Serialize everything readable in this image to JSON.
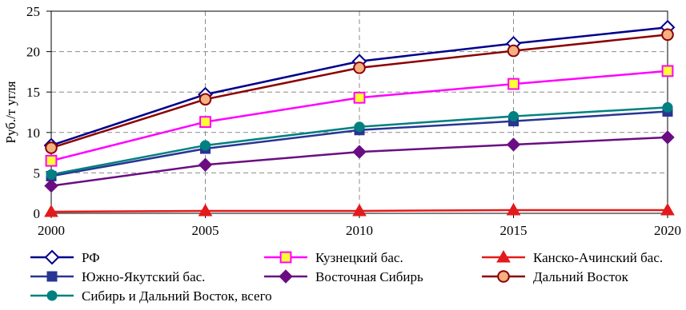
{
  "chart_data": {
    "type": "line",
    "x": [
      2000,
      2005,
      2010,
      2015,
      2020
    ],
    "xlim": [
      2000,
      2020
    ],
    "ylim": [
      0,
      25
    ],
    "x_ticks": [
      "2000",
      "2005",
      "2010",
      "2015",
      "2020"
    ],
    "y_ticks": [
      "0",
      "5",
      "10",
      "15",
      "20",
      "25"
    ],
    "xlabel": "",
    "ylabel": "Руб./т угля",
    "grid": true,
    "legend_position": "bottom",
    "series": [
      {
        "name": "РФ",
        "values": [
          8.4,
          14.7,
          18.8,
          21.0,
          23.0
        ],
        "color": "#00008b",
        "marker": "diamond-open"
      },
      {
        "name": "Кузнецкий бас.",
        "values": [
          6.5,
          11.3,
          14.3,
          16.0,
          17.6
        ],
        "color": "#ff00ff",
        "marker": "square-yellow"
      },
      {
        "name": "Канско-Ачинский бас.",
        "values": [
          0.2,
          0.3,
          0.3,
          0.4,
          0.4
        ],
        "color": "#e31a1c",
        "marker": "triangle"
      },
      {
        "name": "Южно-Якутский бас.",
        "values": [
          4.6,
          8.0,
          10.3,
          11.4,
          12.6
        ],
        "color": "#283593",
        "marker": "square"
      },
      {
        "name": "Восточная Сибирь",
        "values": [
          3.4,
          6.0,
          7.6,
          8.5,
          9.4
        ],
        "color": "#6a0d83",
        "marker": "diamond"
      },
      {
        "name": "Дальний Восток",
        "values": [
          8.1,
          14.1,
          18.0,
          20.1,
          22.1
        ],
        "color": "#8b0000",
        "marker": "circle-orange"
      },
      {
        "name": "Сибирь и Дальний Восток, всего",
        "values": [
          4.8,
          8.4,
          10.7,
          12.0,
          13.1
        ],
        "color": "#008080",
        "marker": "circle"
      }
    ]
  }
}
